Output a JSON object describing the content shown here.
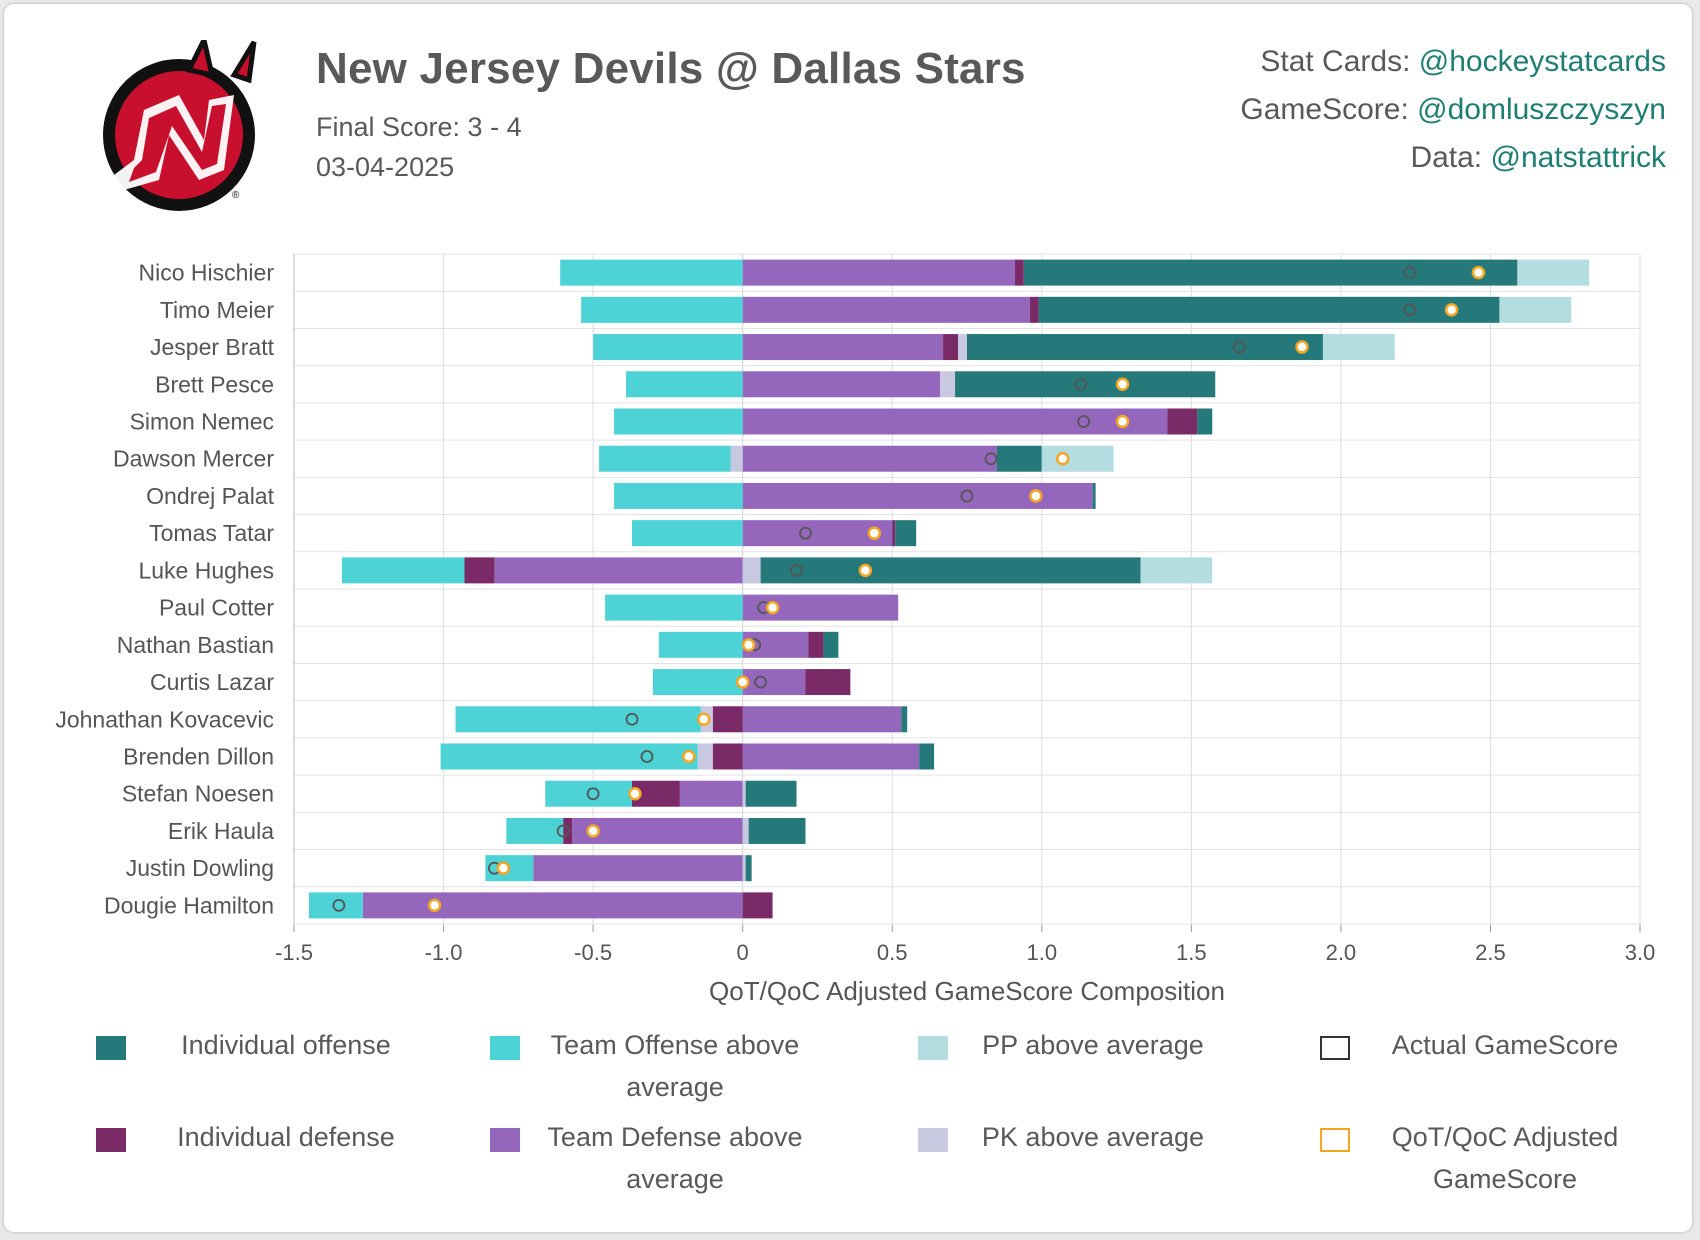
{
  "header": {
    "title": "New Jersey Devils @ Dallas Stars",
    "final_score": "Final Score: 3 - 4",
    "date": "03-04-2025"
  },
  "credits": [
    {
      "label": "Stat Cards: ",
      "handle": "@hockeystatcards"
    },
    {
      "label": "GameScore: ",
      "handle": "@domluszczyszyn"
    },
    {
      "label": "Data: ",
      "handle": "@natstattrick"
    }
  ],
  "logo": {
    "icon": "new-jersey-devils-logo",
    "colors": [
      "#c8102e",
      "#111111",
      "#ffffff"
    ]
  },
  "colors": {
    "individual_offense": "#26797a",
    "team_offense": "#4dd2d6",
    "pp": "#b4dde1",
    "individual_defense": "#792a67",
    "team_defense": "#9467bd",
    "pk": "#c8c8e0",
    "actual_marker": "#555555",
    "adjusted_marker": "#f5a623"
  },
  "legend": [
    {
      "key": "individual_offense",
      "label": "Individual offense",
      "type": "bar"
    },
    {
      "key": "team_offense",
      "label": "Team Offense above average",
      "type": "bar"
    },
    {
      "key": "pp",
      "label": "PP above average",
      "type": "bar"
    },
    {
      "key": "actual",
      "label": "Actual GameScore",
      "type": "marker"
    },
    {
      "key": "individual_defense",
      "label": "Individual defense",
      "type": "bar"
    },
    {
      "key": "team_defense",
      "label": "Team Defense above average",
      "type": "bar"
    },
    {
      "key": "pk",
      "label": "PK above average",
      "type": "bar"
    },
    {
      "key": "adjusted",
      "label": "QoT/QoC Adjusted GameScore",
      "type": "marker"
    }
  ],
  "chart_data": {
    "type": "bar",
    "orientation": "horizontal",
    "stacked": true,
    "xlabel": "QoT/QoC Adjusted GameScore Composition",
    "xlim": [
      -1.5,
      3.0
    ],
    "xticks": [
      -1.5,
      -1.0,
      -0.5,
      0,
      0.5,
      1.0,
      1.5,
      2.0,
      2.5,
      3.0
    ],
    "tick_labels": [
      "-1.5",
      "-1.0",
      "-0.5",
      "0",
      "0.5",
      "1.0",
      "1.5",
      "2.0",
      "2.5",
      "3.0"
    ],
    "grid": true,
    "series_order": [
      "team_defense",
      "individual_defense",
      "pk",
      "individual_offense",
      "team_offense",
      "pp"
    ],
    "players": [
      {
        "name": "Nico Hischier",
        "team_offense": -0.61,
        "team_defense": 0.91,
        "individual_defense": 0.03,
        "pk": 0,
        "individual_offense": 1.65,
        "pp": 0.24,
        "actual": 2.23,
        "adjusted": 2.46
      },
      {
        "name": "Timo Meier",
        "team_offense": -0.54,
        "team_defense": 0.96,
        "individual_defense": 0.03,
        "pk": 0,
        "individual_offense": 1.54,
        "pp": 0.24,
        "actual": 2.23,
        "adjusted": 2.37
      },
      {
        "name": "Jesper Bratt",
        "team_offense": -0.5,
        "team_defense": 0.67,
        "individual_defense": 0.05,
        "pk": 0.03,
        "individual_offense": 1.19,
        "pp": 0.24,
        "actual": 1.66,
        "adjusted": 1.87
      },
      {
        "name": "Brett Pesce",
        "team_offense": -0.39,
        "team_defense": 0.66,
        "individual_defense": 0,
        "pk": 0.05,
        "individual_offense": 0.87,
        "pp": 0,
        "actual": 1.13,
        "adjusted": 1.27
      },
      {
        "name": "Simon Nemec",
        "team_offense": -0.43,
        "team_defense": 1.42,
        "individual_defense": 0.1,
        "pk": 0,
        "individual_offense": 0.05,
        "pp": 0,
        "actual": 1.14,
        "adjusted": 1.27
      },
      {
        "name": "Dawson Mercer",
        "team_offense": -0.44,
        "team_defense": 0.85,
        "individual_defense": 0,
        "pk": -0.04,
        "individual_offense": 0.15,
        "pp": 0.24,
        "actual": 0.83,
        "adjusted": 1.07
      },
      {
        "name": "Ondrej Palat",
        "team_offense": -0.43,
        "team_defense": 1.17,
        "individual_defense": 0,
        "pk": 0,
        "individual_offense": 0.01,
        "pp": 0,
        "actual": 0.75,
        "adjusted": 0.98
      },
      {
        "name": "Tomas Tatar",
        "team_offense": -0.37,
        "team_defense": 0.5,
        "individual_defense": 0.01,
        "pk": 0,
        "individual_offense": 0.07,
        "pp": 0,
        "actual": 0.21,
        "adjusted": 0.44
      },
      {
        "name": "Luke Hughes",
        "team_offense": -0.41,
        "team_defense": -0.83,
        "individual_defense": -0.1,
        "pk": 0.06,
        "individual_offense": 1.27,
        "pp": 0.24,
        "actual": 0.18,
        "adjusted": 0.41
      },
      {
        "name": "Paul Cotter",
        "team_offense": -0.46,
        "team_defense": 0.52,
        "individual_defense": 0,
        "pk": 0,
        "individual_offense": 0,
        "pp": 0,
        "actual": 0.07,
        "adjusted": 0.1
      },
      {
        "name": "Nathan Bastian",
        "team_offense": -0.28,
        "team_defense": 0.22,
        "individual_defense": 0.05,
        "pk": 0,
        "individual_offense": 0.05,
        "pp": 0,
        "actual": 0.04,
        "adjusted": 0.02
      },
      {
        "name": "Curtis Lazar",
        "team_offense": -0.3,
        "team_defense": 0.21,
        "individual_defense": 0.15,
        "pk": 0,
        "individual_offense": 0,
        "pp": 0,
        "actual": 0.06,
        "adjusted": 0.0
      },
      {
        "name": "Johnathan Kovacevic",
        "team_offense": -0.82,
        "team_defense": 0.53,
        "individual_defense": -0.1,
        "pk": -0.04,
        "individual_offense": 0.02,
        "pp": 0,
        "actual": -0.37,
        "adjusted": -0.13
      },
      {
        "name": "Brenden Dillon",
        "team_offense": -0.86,
        "team_defense": 0.59,
        "individual_defense": -0.1,
        "pk": -0.05,
        "individual_offense": 0.05,
        "pp": 0,
        "actual": -0.32,
        "adjusted": -0.18
      },
      {
        "name": "Stefan Noesen",
        "team_offense": -0.29,
        "team_defense": -0.21,
        "individual_defense": -0.16,
        "pk": 0.01,
        "individual_offense": 0.17,
        "pp": 0,
        "actual": -0.5,
        "adjusted": -0.36
      },
      {
        "name": "Erik Haula",
        "team_offense": -0.19,
        "team_defense": -0.57,
        "individual_defense": -0.03,
        "pk": 0.02,
        "individual_offense": 0.19,
        "pp": 0,
        "actual": -0.6,
        "adjusted": -0.5
      },
      {
        "name": "Justin Dowling",
        "team_offense": -0.16,
        "team_defense": -0.7,
        "individual_defense": 0,
        "pk": 0.01,
        "individual_offense": 0.02,
        "pp": 0,
        "actual": -0.83,
        "adjusted": -0.8
      },
      {
        "name": "Dougie Hamilton",
        "team_offense": -0.18,
        "team_defense": -1.27,
        "individual_defense": 0.1,
        "pk": 0,
        "individual_offense": 0,
        "pp": 0,
        "actual": -1.35,
        "adjusted": -1.03
      }
    ]
  }
}
